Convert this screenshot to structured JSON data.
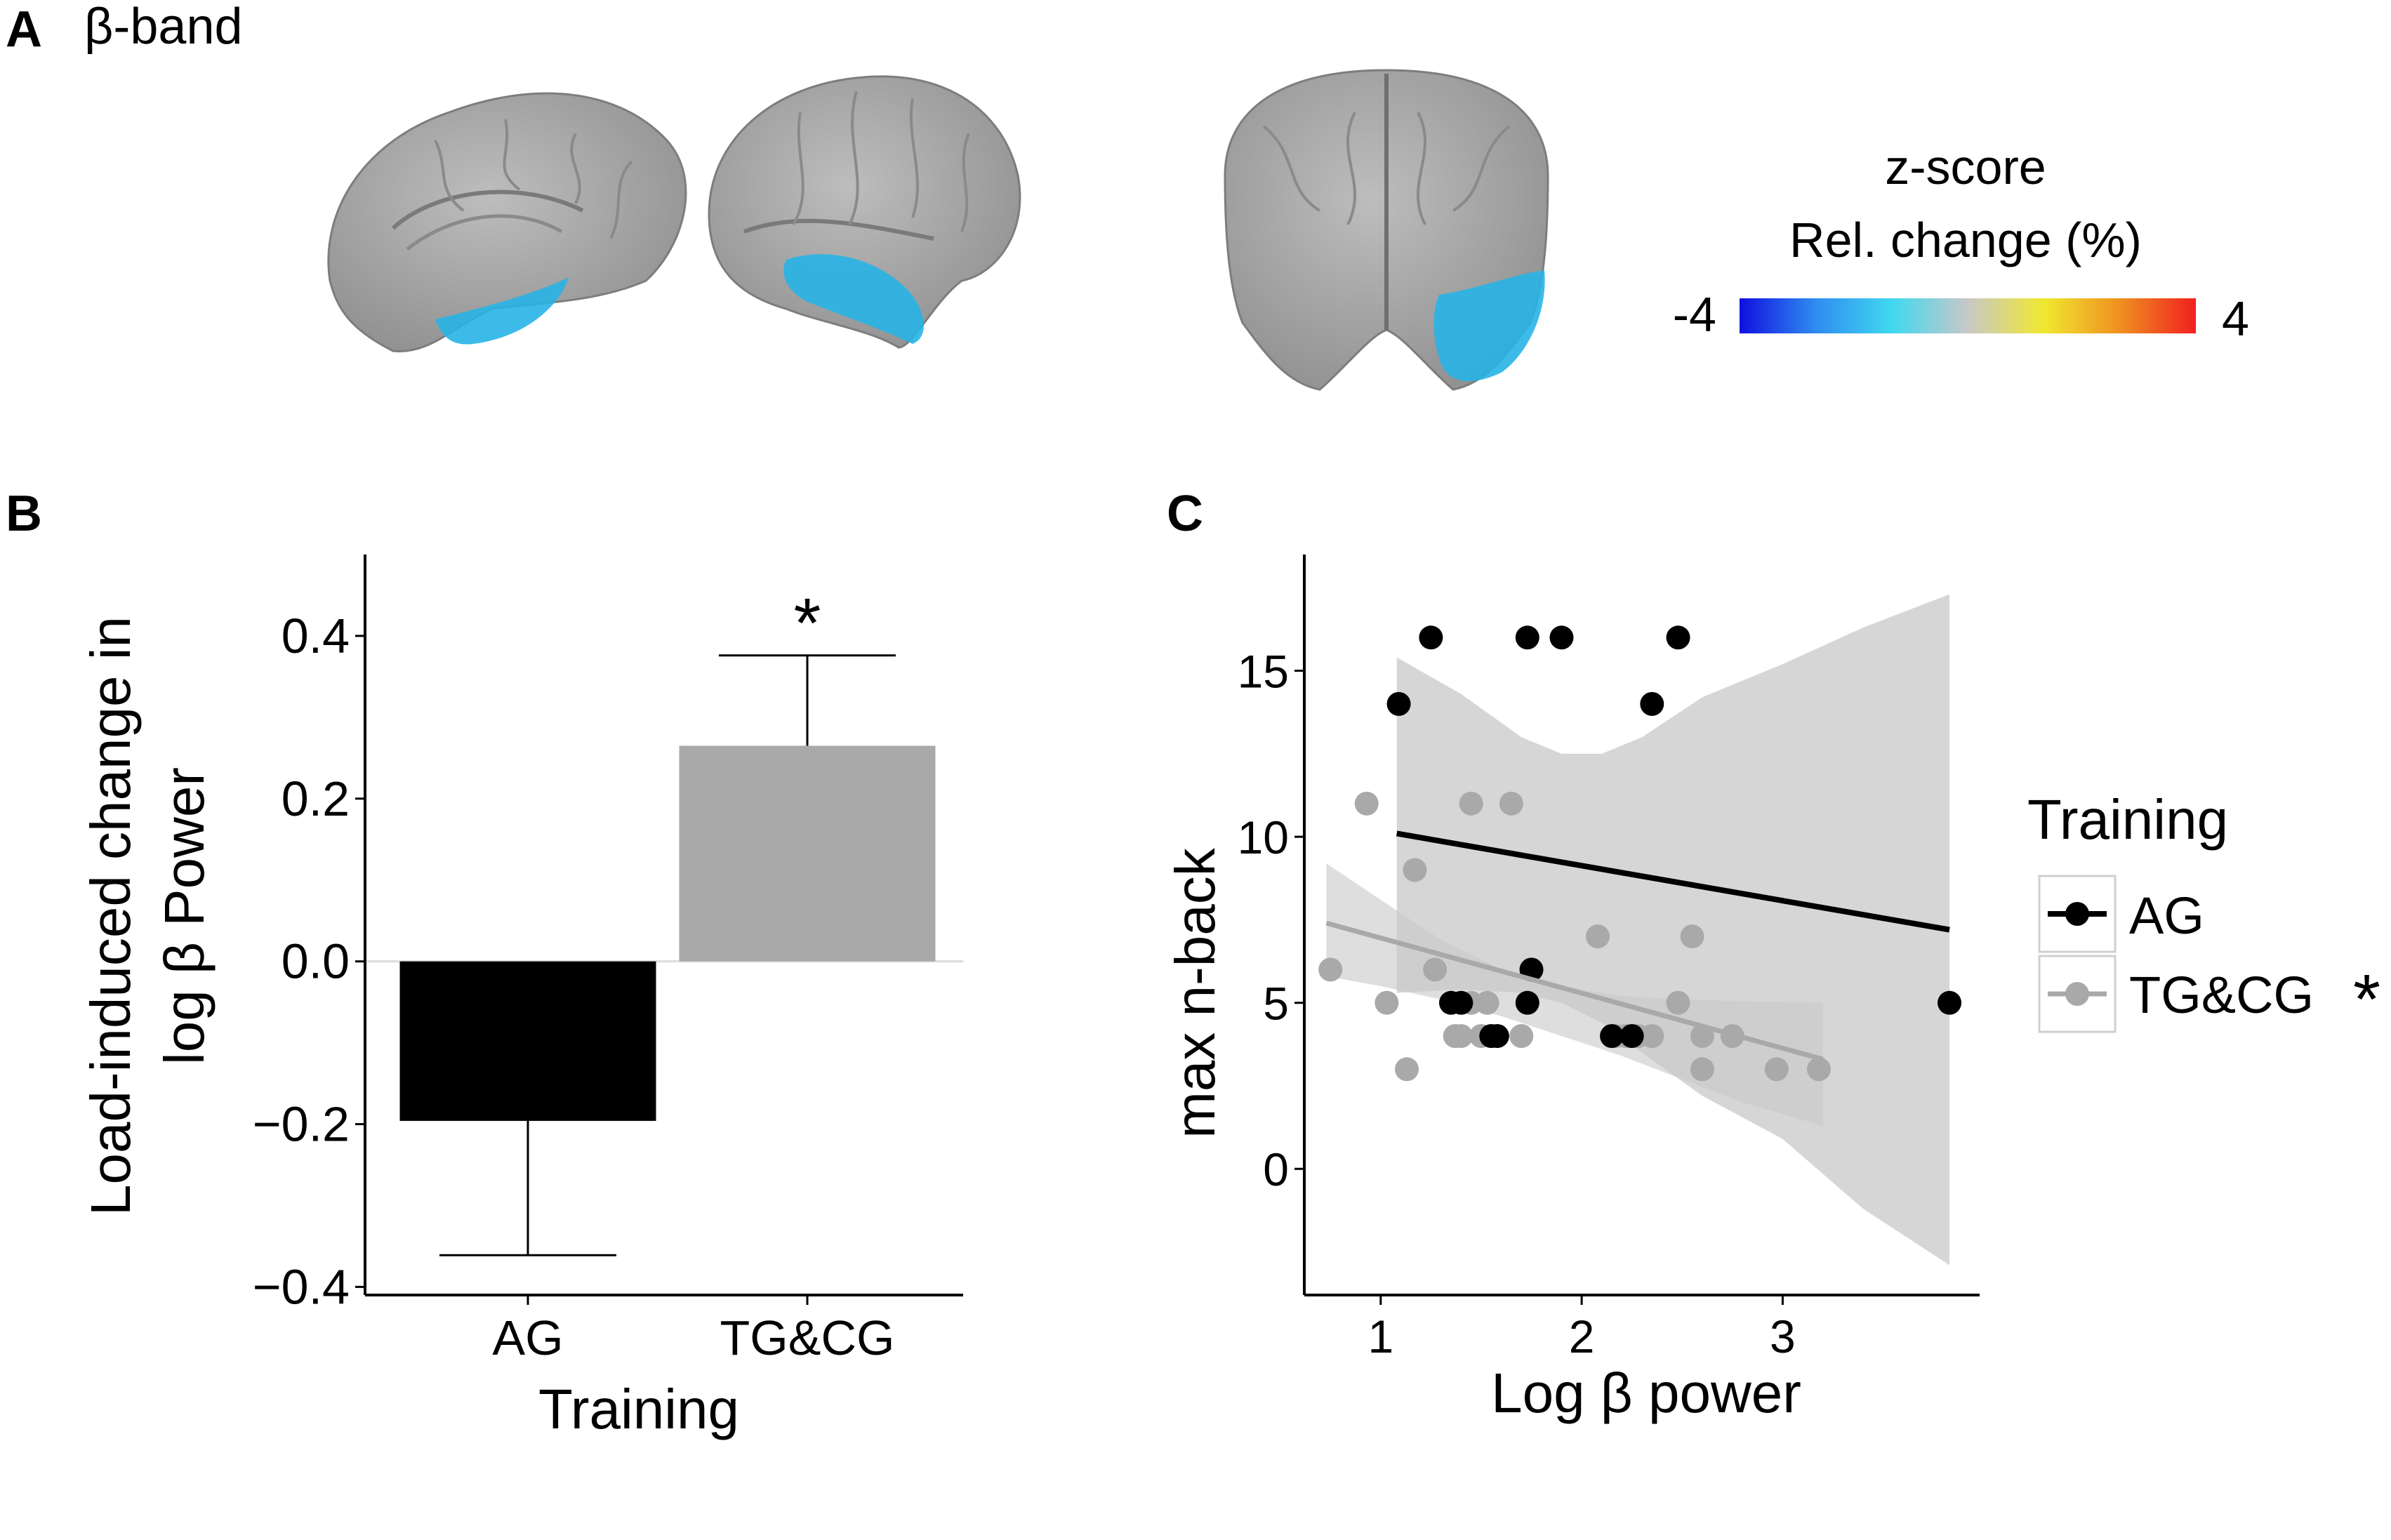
{
  "panels": {
    "a": {
      "letter": "A",
      "title": "β-band"
    },
    "b": {
      "letter": "B"
    },
    "c": {
      "letter": "C"
    }
  },
  "colorbar": {
    "title": "z-score",
    "subtitle": "Rel. change (%)",
    "min_label": "-4",
    "max_label": "4",
    "colors": [
      "#1010e0",
      "#2f8cf0",
      "#40d8f0",
      "#c8c8c8",
      "#f0e830",
      "#f09020",
      "#f02020"
    ]
  },
  "brain_views": [
    {
      "view": "medial-left"
    },
    {
      "view": "lateral-left"
    },
    {
      "view": "frontal"
    }
  ],
  "colors": {
    "ag": "#000000",
    "tgcg": "#a9a9a9",
    "ribbon": "#c8c8c8",
    "brain": "#a7a7a7",
    "blob": "#28b4e6"
  },
  "chart_data": [
    {
      "type": "bar",
      "panel": "B",
      "categories": [
        "AG",
        "TG&CG"
      ],
      "values": [
        -0.196,
        0.265
      ],
      "error": [
        0.165,
        0.111
      ],
      "significance": [
        "",
        "*"
      ],
      "xlabel": "Training",
      "ylabel_line1": "Load-induced change in",
      "ylabel_line2": "log β Power",
      "ylim": [
        -0.41,
        0.5
      ],
      "yticks": [
        -0.4,
        -0.2,
        0.0,
        0.2,
        0.4
      ],
      "ytick_labels": [
        "−0.4",
        "−0.2",
        "0.0",
        "0.2",
        "0.4"
      ]
    },
    {
      "type": "scatter",
      "panel": "C",
      "xlabel": "Log β power",
      "ylabel": "max n-back",
      "xlim": [
        0.62,
        3.98
      ],
      "ylim": [
        -3.8,
        18.5
      ],
      "xticks": [
        1,
        2,
        3
      ],
      "yticks": [
        0,
        5,
        10,
        15
      ],
      "legend_title": "Training",
      "legend_position": "right",
      "significance_marker": "*",
      "series": [
        {
          "name": "AG",
          "points": [
            [
              1.09,
              14
            ],
            [
              1.25,
              16
            ],
            [
              1.73,
              16
            ],
            [
              1.9,
              16
            ],
            [
              2.35,
              14
            ],
            [
              2.48,
              16
            ],
            [
              1.35,
              5
            ],
            [
              1.4,
              5
            ],
            [
              1.55,
              4
            ],
            [
              1.58,
              4
            ],
            [
              1.73,
              5
            ],
            [
              1.75,
              6
            ],
            [
              2.15,
              4
            ],
            [
              2.25,
              4
            ],
            [
              3.83,
              5
            ]
          ],
          "fit": {
            "x0": 1.08,
            "y0": 10.1,
            "x1": 3.83,
            "y1": 7.2
          },
          "band": [
            [
              1.08,
              15.4,
              5.3
            ],
            [
              1.4,
              14.3,
              5.4
            ],
            [
              1.7,
              13.0,
              5.3
            ],
            [
              1.9,
              12.5,
              5.0
            ],
            [
              2.1,
              12.5,
              4.4
            ],
            [
              2.3,
              13.0,
              3.5
            ],
            [
              2.6,
              14.2,
              2.2
            ],
            [
              3.0,
              15.2,
              0.9
            ],
            [
              3.4,
              16.3,
              -1.2
            ],
            [
              3.83,
              17.3,
              -2.9
            ]
          ]
        },
        {
          "name": "TG&CG",
          "points": [
            [
              0.75,
              6
            ],
            [
              0.93,
              11
            ],
            [
              1.03,
              5
            ],
            [
              1.13,
              3
            ],
            [
              1.17,
              9
            ],
            [
              1.27,
              6
            ],
            [
              1.37,
              4
            ],
            [
              1.4,
              4
            ],
            [
              1.45,
              11
            ],
            [
              1.45,
              5
            ],
            [
              1.5,
              4
            ],
            [
              1.53,
              5
            ],
            [
              1.65,
              11
            ],
            [
              1.7,
              4
            ],
            [
              2.08,
              7
            ],
            [
              2.17,
              4
            ],
            [
              2.22,
              4
            ],
            [
              2.28,
              4
            ],
            [
              2.35,
              4
            ],
            [
              2.48,
              5
            ],
            [
              2.55,
              7
            ],
            [
              2.6,
              4
            ],
            [
              2.6,
              3
            ],
            [
              2.75,
              4
            ],
            [
              2.97,
              3
            ],
            [
              3.18,
              3
            ]
          ],
          "fit": {
            "x0": 0.73,
            "y0": 7.4,
            "x1": 3.2,
            "y1": 3.3
          },
          "band": [
            [
              0.73,
              9.2,
              5.8
            ],
            [
              1.0,
              8.1,
              5.5
            ],
            [
              1.3,
              6.9,
              5.1
            ],
            [
              1.6,
              6.0,
              4.6
            ],
            [
              1.9,
              5.5,
              4.0
            ],
            [
              2.2,
              5.2,
              3.4
            ],
            [
              2.5,
              5.1,
              2.7
            ],
            [
              2.8,
              5.05,
              2.0
            ],
            [
              3.2,
              5.0,
              1.3
            ]
          ]
        }
      ]
    }
  ]
}
